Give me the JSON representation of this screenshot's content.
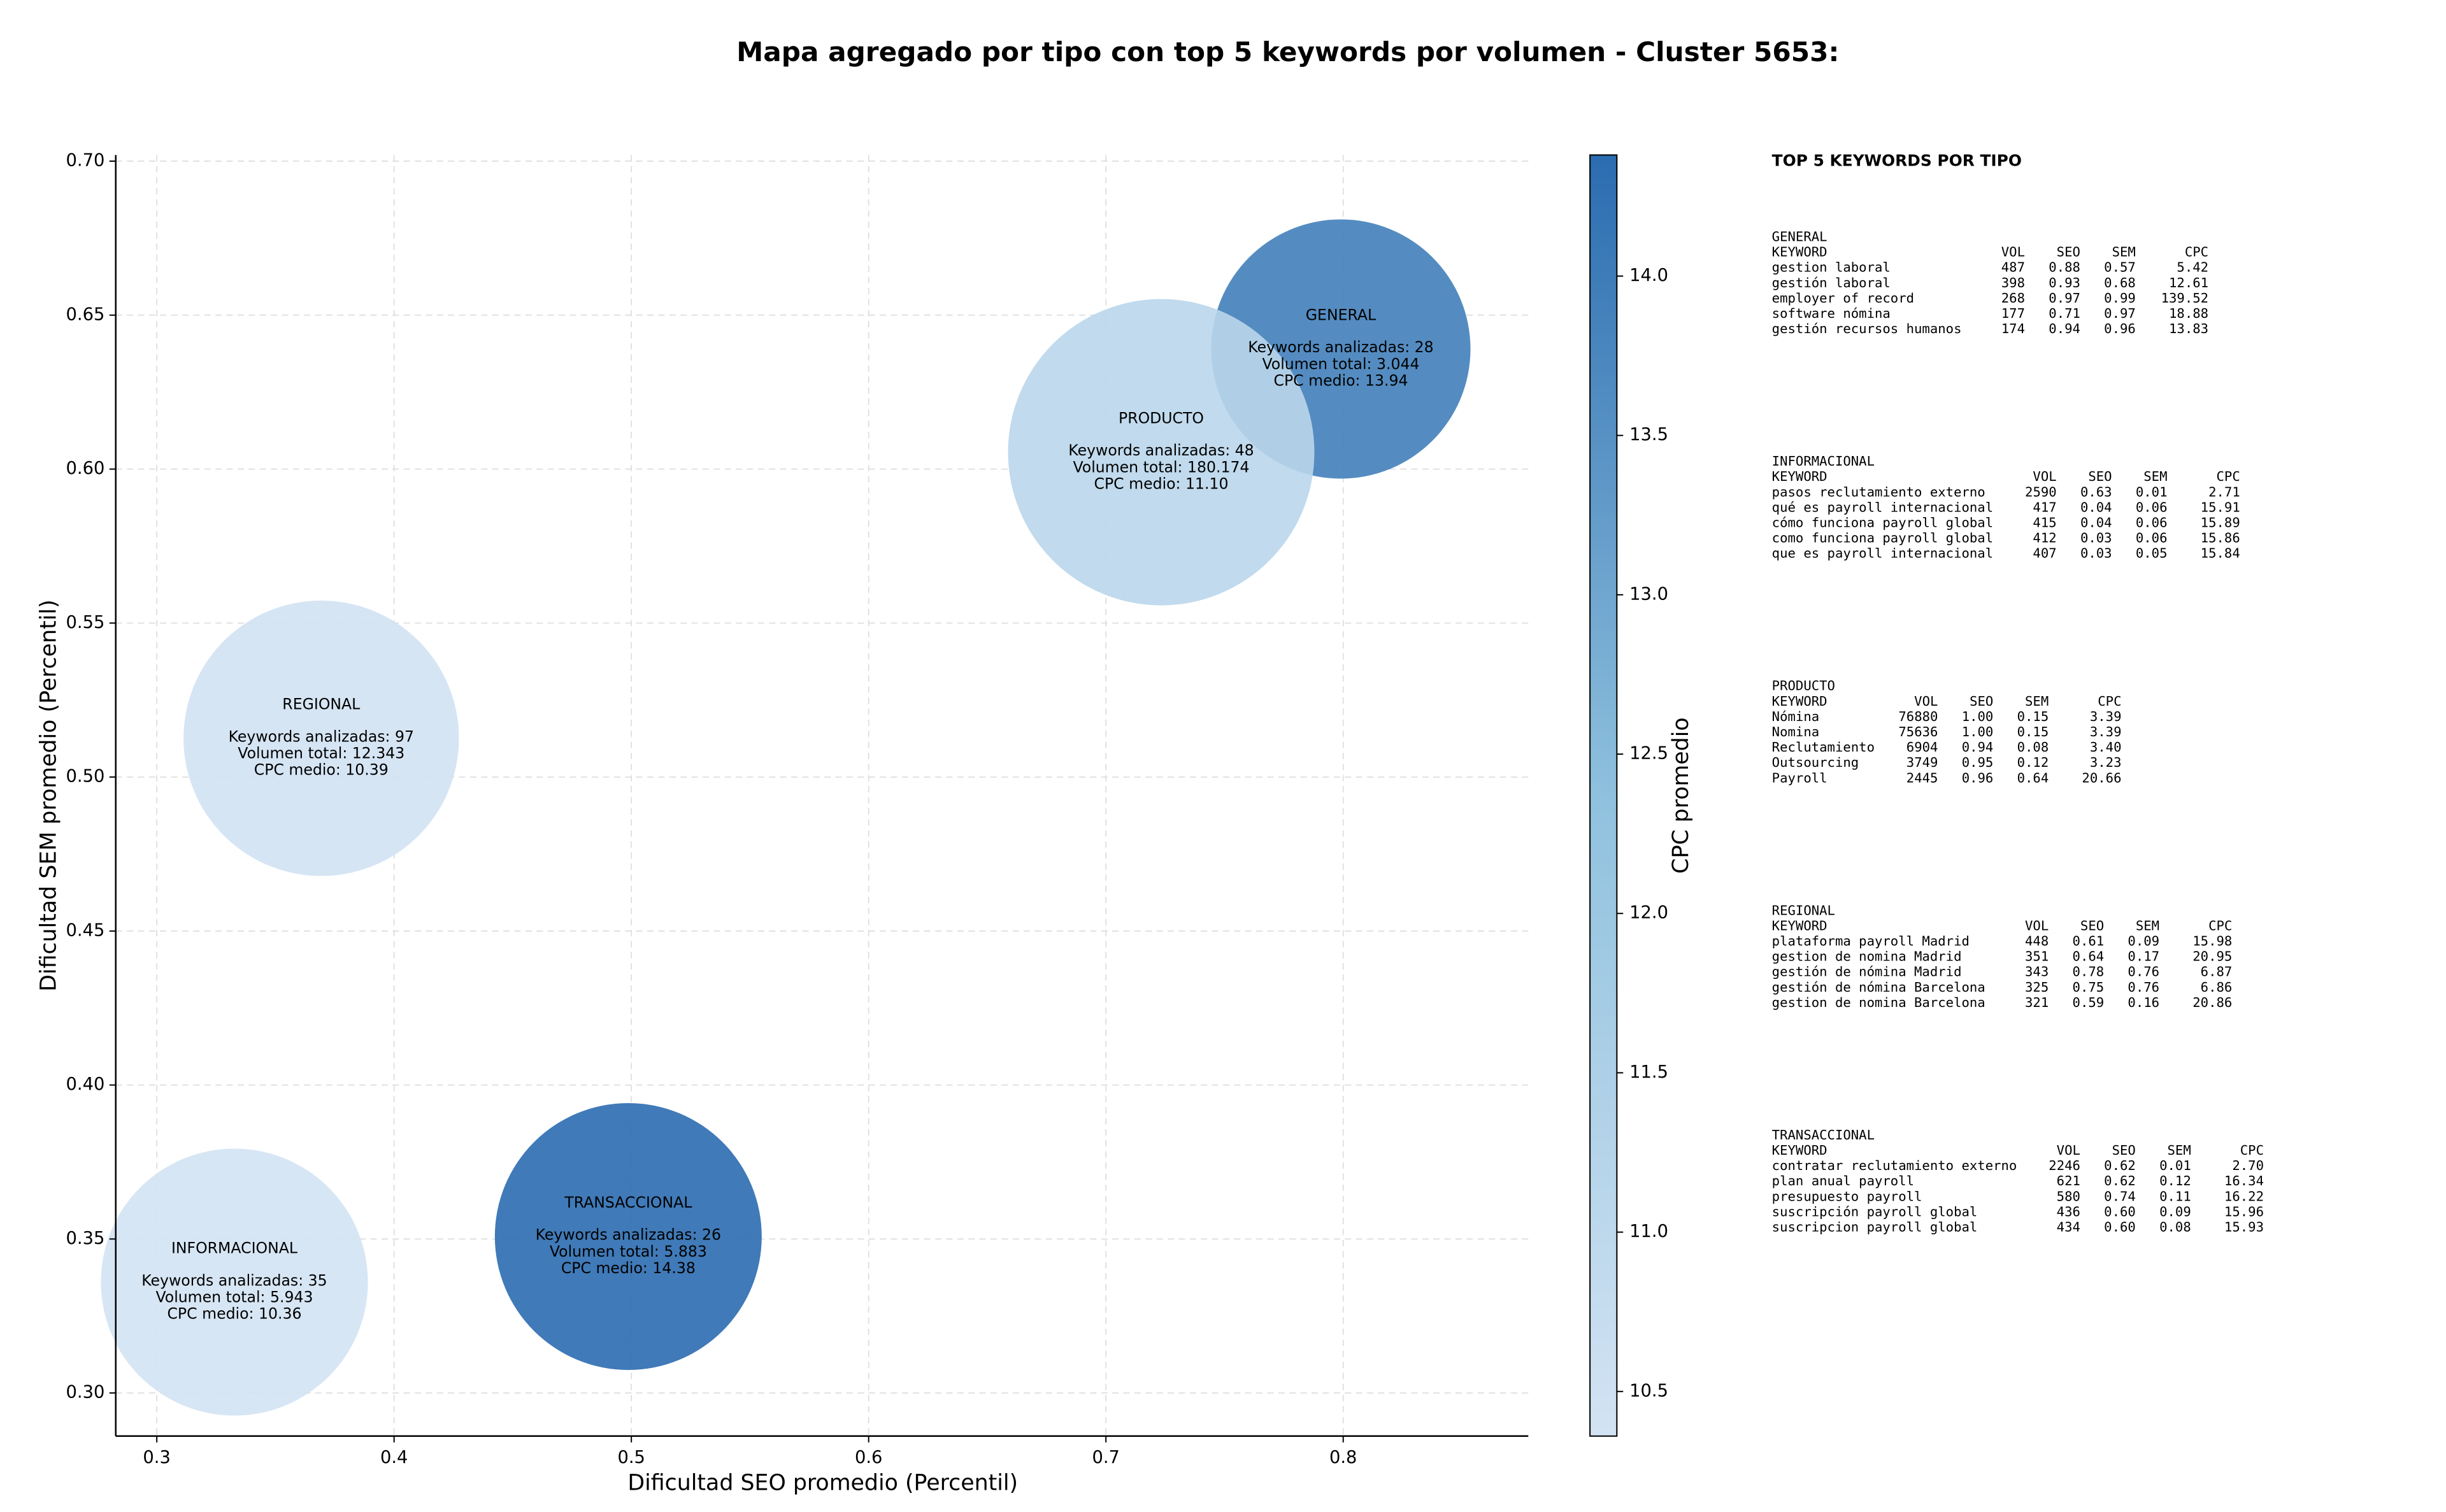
{
  "chart_data": {
    "type": "bubble",
    "title": "Mapa agregado por tipo con top 5 keywords por volumen - Cluster 5653:",
    "xlabel": "Dificultad SEO promedio (Percentil)",
    "ylabel": "Dificultad SEM promedio (Percentil)",
    "xlim": [
      0.2827,
      0.878
    ],
    "ylim": [
      0.286,
      0.702
    ],
    "xticks": [
      0.3,
      0.4,
      0.5,
      0.6,
      0.7,
      0.8
    ],
    "yticks": [
      {
        "value": 0.3,
        "label": "0.30"
      },
      0.35,
      {
        "value": 0.4,
        "label": "0.40"
      },
      0.45,
      {
        "value": 0.5,
        "label": "0.50"
      },
      0.55,
      {
        "value": 0.6,
        "label": "0.60"
      },
      0.65,
      {
        "value": 0.7,
        "label": "0.70"
      }
    ],
    "grid": true,
    "colorbar": {
      "label": "CPC promedio",
      "lim": [
        10.36,
        14.38
      ],
      "ticks": [
        10.5,
        {
          "value": 11,
          "label": "11.0"
        },
        11.5,
        {
          "value": 12,
          "label": "12.0"
        },
        12.5,
        {
          "value": 13,
          "label": "13.0"
        },
        13.5,
        {
          "value": 14,
          "label": "14.0"
        }
      ],
      "colormap": [
        "#d3e3f3",
        "#8fc1de",
        "#2b6cb0"
      ]
    },
    "points": [
      {
        "name": "GENERAL",
        "x": 0.799,
        "y": 0.639,
        "cpc": 13.94,
        "volume": 3044,
        "details": [
          "Keywords analizadas: 28",
          "Volumen total: 3.044",
          "CPC medio: 13.94"
        ]
      },
      {
        "name": "INFORMACIONAL",
        "x": 0.3327,
        "y": 0.336,
        "cpc": 10.36,
        "volume": 5943,
        "details": [
          "Keywords analizadas: 35",
          "Volumen total: 5.943",
          "CPC medio: 10.36"
        ]
      },
      {
        "name": "PRODUCTO",
        "x": 0.7233,
        "y": 0.6055,
        "cpc": 11.1,
        "volume": 180174,
        "details": [
          "Keywords analizadas: 48",
          "Volumen total: 180.174",
          "CPC medio: 11.10"
        ]
      },
      {
        "name": "REGIONAL",
        "x": 0.3693,
        "y": 0.5126,
        "cpc": 10.39,
        "volume": 12343,
        "details": [
          "Keywords analizadas: 97",
          "Volumen total: 12.343",
          "CPC medio: 10.39"
        ]
      },
      {
        "name": "TRANSACCIONAL",
        "x": 0.4987,
        "y": 0.3508,
        "cpc": 14.38,
        "volume": 5883,
        "details": [
          "Keywords analizadas: 26",
          "Volumen total: 5.883",
          "CPC medio: 14.38"
        ]
      }
    ]
  },
  "keyword_panel": {
    "title": "TOP 5 KEYWORDS POR TIPO",
    "columns": [
      "KEYWORD",
      "VOL",
      "SEO",
      "SEM",
      "CPC"
    ],
    "groups": [
      {
        "name": "GENERAL",
        "rows": [
          [
            "gestion laboral",
            "487",
            "0.88",
            "0.57",
            "5.42"
          ],
          [
            "gestión laboral",
            "398",
            "0.93",
            "0.68",
            "12.61"
          ],
          [
            "employer of record",
            "268",
            "0.97",
            "0.99",
            "139.52"
          ],
          [
            "software nómina",
            "177",
            "0.71",
            "0.97",
            "18.88"
          ],
          [
            "gestión recursos humanos",
            "174",
            "0.94",
            "0.96",
            "13.83"
          ]
        ]
      },
      {
        "name": "INFORMACIONAL",
        "rows": [
          [
            "pasos reclutamiento externo",
            "2590",
            "0.63",
            "0.01",
            "2.71"
          ],
          [
            "qué es payroll internacional",
            "417",
            "0.04",
            "0.06",
            "15.91"
          ],
          [
            "cómo funciona payroll global",
            "415",
            "0.04",
            "0.06",
            "15.89"
          ],
          [
            "como funciona payroll global",
            "412",
            "0.03",
            "0.06",
            "15.86"
          ],
          [
            "que es payroll internacional",
            "407",
            "0.03",
            "0.05",
            "15.84"
          ]
        ]
      },
      {
        "name": "PRODUCTO",
        "rows": [
          [
            "Nómina",
            "76880",
            "1.00",
            "0.15",
            "3.39"
          ],
          [
            "Nomina",
            "75636",
            "1.00",
            "0.15",
            "3.39"
          ],
          [
            "Reclutamiento",
            "6904",
            "0.94",
            "0.08",
            "3.40"
          ],
          [
            "Outsourcing",
            "3749",
            "0.95",
            "0.12",
            "3.23"
          ],
          [
            "Payroll",
            "2445",
            "0.96",
            "0.64",
            "20.66"
          ]
        ]
      },
      {
        "name": "REGIONAL",
        "rows": [
          [
            "plataforma payroll Madrid",
            "448",
            "0.61",
            "0.09",
            "15.98"
          ],
          [
            "gestion de nomina Madrid",
            "351",
            "0.64",
            "0.17",
            "20.95"
          ],
          [
            "gestión de nómina Madrid",
            "343",
            "0.78",
            "0.76",
            "6.87"
          ],
          [
            "gestión de nómina Barcelona",
            "325",
            "0.75",
            "0.76",
            "6.86"
          ],
          [
            "gestion de nomina Barcelona",
            "321",
            "0.59",
            "0.16",
            "20.86"
          ]
        ]
      },
      {
        "name": "TRANSACCIONAL",
        "rows": [
          [
            "contratar reclutamiento externo",
            "2246",
            "0.62",
            "0.01",
            "2.70"
          ],
          [
            "plan anual payroll",
            "621",
            "0.62",
            "0.12",
            "16.34"
          ],
          [
            "presupuesto payroll",
            "580",
            "0.74",
            "0.11",
            "16.22"
          ],
          [
            "suscripción payroll global",
            "436",
            "0.60",
            "0.09",
            "15.96"
          ],
          [
            "suscripcion payroll global",
            "434",
            "0.60",
            "0.08",
            "15.93"
          ]
        ]
      }
    ]
  }
}
